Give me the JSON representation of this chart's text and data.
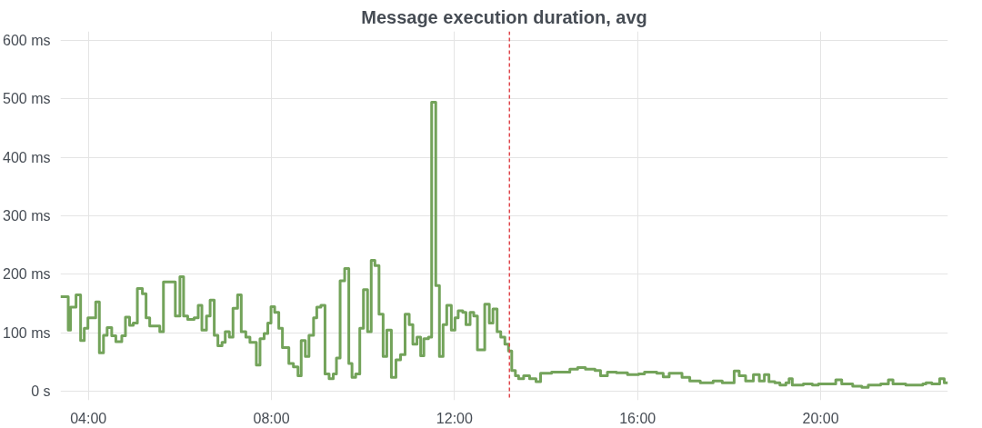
{
  "chart_data": {
    "type": "step",
    "title": "Message execution duration, avg",
    "x": [
      3.39,
      3.56,
      3.61,
      3.73,
      3.83,
      3.91,
      3.99,
      4.16,
      4.24,
      4.33,
      4.41,
      4.51,
      4.6,
      4.73,
      4.81,
      4.9,
      4.98,
      5.07,
      5.18,
      5.26,
      5.34,
      5.56,
      5.64,
      5.9,
      6.0,
      6.08,
      6.17,
      6.31,
      6.4,
      6.48,
      6.58,
      6.66,
      6.75,
      6.83,
      6.92,
      6.99,
      7.08,
      7.16,
      7.26,
      7.34,
      7.44,
      7.53,
      7.67,
      7.75,
      7.84,
      7.92,
      7.99,
      8.07,
      8.16,
      8.24,
      8.38,
      8.48,
      8.58,
      8.65,
      8.74,
      8.82,
      8.92,
      8.99,
      9.08,
      9.17,
      9.26,
      9.35,
      9.42,
      9.5,
      9.6,
      9.69,
      9.76,
      9.84,
      9.93,
      10.01,
      10.1,
      10.18,
      10.26,
      10.35,
      10.44,
      10.52,
      10.62,
      10.72,
      10.82,
      10.92,
      11.01,
      11.09,
      11.18,
      11.26,
      11.33,
      11.43,
      11.5,
      11.59,
      11.67,
      11.75,
      11.83,
      11.93,
      12.01,
      12.08,
      12.18,
      12.25,
      12.34,
      12.42,
      12.5,
      12.66,
      12.76,
      12.84,
      12.93,
      13.01,
      13.1,
      13.18,
      13.25,
      13.33,
      13.4,
      13.51,
      13.64,
      13.78,
      13.88,
      14.12,
      14.42,
      14.52,
      14.69,
      14.86,
      15.07,
      15.19,
      15.34,
      15.54,
      15.78,
      16.02,
      16.15,
      16.42,
      16.56,
      16.69,
      16.83,
      16.97,
      17.14,
      17.37,
      17.65,
      17.85,
      18.11,
      18.22,
      18.36,
      18.53,
      18.66,
      18.77,
      18.87,
      19.0,
      19.11,
      19.24,
      19.31,
      19.38,
      19.62,
      19.82,
      19.95,
      20.23,
      20.33,
      20.46,
      20.7,
      20.9,
      21.04,
      21.31,
      21.48,
      21.58,
      21.86,
      22.23,
      22.3,
      22.43,
      22.6,
      22.7,
      22.78
    ],
    "series": [
      {
        "color": "#73a35a",
        "values": [
          162,
          105,
          144,
          165,
          87,
          108,
          126,
          153,
          66,
          96,
          109,
          95,
          85,
          95,
          127,
          113,
          117,
          176,
          167,
          126,
          112,
          102,
          187,
          129,
          196,
          129,
          123,
          126,
          147,
          105,
          129,
          156,
          96,
          78,
          84,
          102,
          93,
          142,
          165,
          102,
          93,
          84,
          45,
          90,
          99,
          117,
          145,
          135,
          108,
          75,
          48,
          42,
          27,
          87,
          60,
          96,
          126,
          144,
          147,
          30,
          22,
          30,
          57,
          189,
          210,
          48,
          24,
          30,
          108,
          174,
          102,
          224,
          215,
          132,
          60,
          105,
          24,
          54,
          63,
          132,
          114,
          81,
          93,
          61,
          90,
          93,
          494,
          181,
          60,
          114,
          147,
          105,
          126,
          138,
          135,
          114,
          135,
          129,
          71,
          149,
          117,
          141,
          102,
          93,
          81,
          69,
          36,
          27,
          22,
          27,
          22,
          17,
          31,
          33,
          33,
          38,
          41,
          38,
          36,
          27,
          33,
          32,
          29,
          30,
          33,
          31,
          25,
          31,
          31,
          24,
          18,
          15,
          18,
          15,
          35,
          27,
          18,
          29,
          18,
          29,
          17,
          15,
          11,
          15,
          22,
          11,
          13,
          11,
          13,
          13,
          20,
          13,
          9,
          7,
          11,
          13,
          20,
          13,
          11,
          13,
          15,
          13,
          22,
          15,
          15
        ]
      }
    ],
    "xlim": [
      3.39,
      22.78
    ],
    "xticks": [
      {
        "value": 4,
        "label": "04:00"
      },
      {
        "value": 8,
        "label": "08:00"
      },
      {
        "value": 12,
        "label": "12:00"
      },
      {
        "value": 16,
        "label": "16:00"
      },
      {
        "value": 20,
        "label": "20:00"
      }
    ],
    "ylim": [
      -15,
      615
    ],
    "yticks": [
      {
        "value": 0,
        "label": "0 s"
      },
      {
        "value": 100,
        "label": "100 ms"
      },
      {
        "value": 200,
        "label": "200 ms"
      },
      {
        "value": 300,
        "label": "300 ms"
      },
      {
        "value": 400,
        "label": "400 ms"
      },
      {
        "value": 500,
        "label": "500 ms"
      },
      {
        "value": 600,
        "label": "600 ms"
      }
    ],
    "grid": true,
    "ref_lines": [
      {
        "axis": "x",
        "value": 13.2,
        "color": "#e0474c",
        "line_style": "dashed"
      }
    ]
  }
}
